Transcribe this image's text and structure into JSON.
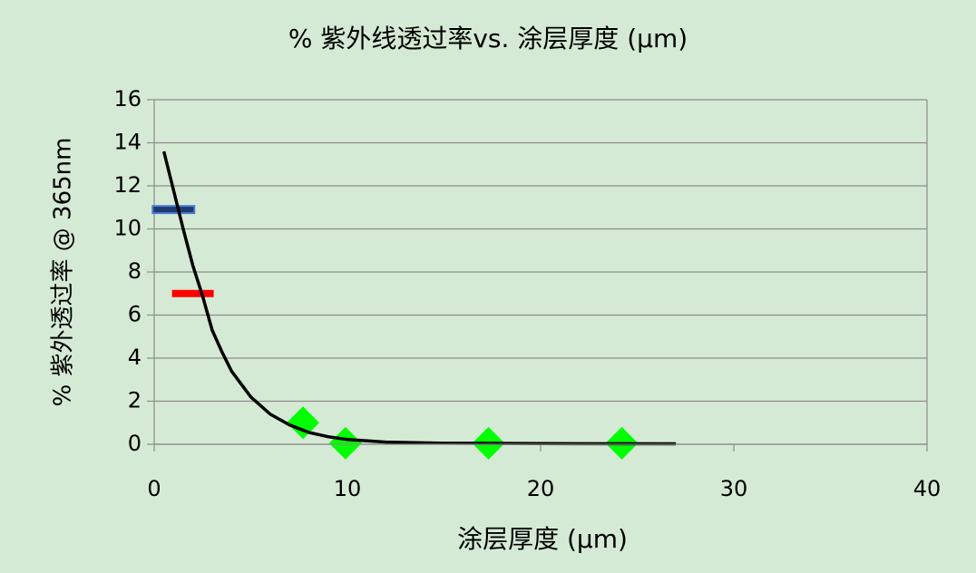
{
  "chart_data": {
    "type": "scatter",
    "title": "% 紫外线透过率vs. 涂层厚度 (μm)",
    "x_label": "涂层厚度 (μm)",
    "y_label": "% 紫外透过率 @ 365nm",
    "xlim": [
      0,
      40
    ],
    "xticks": [
      0,
      10,
      20,
      30,
      40
    ],
    "ylim": [
      0,
      16
    ],
    "yticks": [
      0,
      2,
      4,
      6,
      8,
      10,
      12,
      14,
      16
    ],
    "grid": true,
    "series": [
      {
        "marker": "line",
        "color": "#000000",
        "x": [
          0.5,
          1,
          1.5,
          2,
          2.5,
          3,
          3.5,
          4,
          5,
          6,
          7,
          8,
          9,
          10,
          12,
          15,
          20,
          27
        ],
        "values": [
          13.6,
          11.8,
          10,
          8.3,
          6.9,
          5.3,
          4.3,
          3.4,
          2.2,
          1.4,
          0.9,
          0.55,
          0.35,
          0.22,
          0.1,
          0.05,
          0.03,
          0.02
        ]
      },
      {
        "marker": "dash",
        "color": "#1f3a70",
        "x": [
          1
        ],
        "values": [
          10.9
        ]
      },
      {
        "marker": "dash",
        "color": "#ff0000",
        "x": [
          2
        ],
        "values": [
          7.0
        ]
      },
      {
        "marker": "diamond",
        "color": "#00ff00",
        "x": [
          7.7,
          9.9,
          17.3,
          24.2
        ],
        "values": [
          1.0,
          0.05,
          0.05,
          0.05
        ]
      }
    ]
  }
}
